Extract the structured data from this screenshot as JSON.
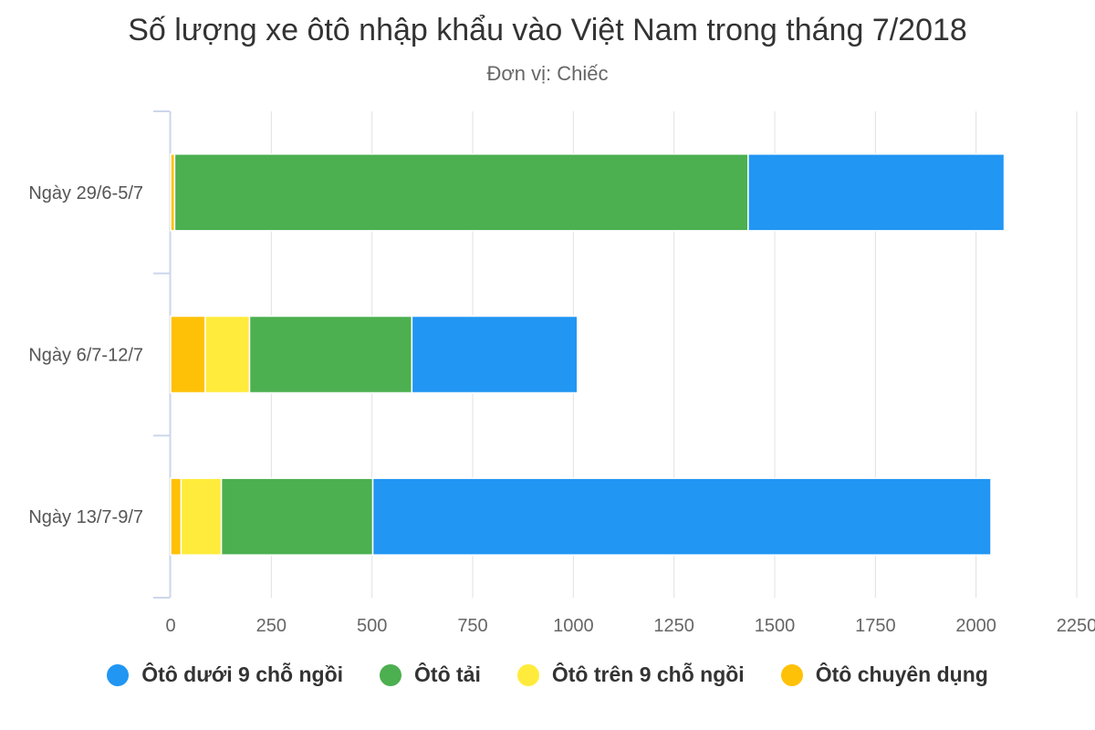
{
  "chart_data": {
    "type": "bar",
    "orientation": "horizontal",
    "stacked": true,
    "title": "Số lượng xe ôtô nhập khẩu vào Việt Nam trong tháng 7/2018",
    "subtitle": "Đơn vị: Chiếc",
    "categories": [
      "Ngày 29/6-5/7",
      "Ngày 6/7-12/7",
      "Ngày 13/7-9/7"
    ],
    "series": [
      {
        "name": "Ôtô dưới 9 chỗ ngồi",
        "color": "#2196F3",
        "values": [
          636,
          411,
          1535
        ]
      },
      {
        "name": "Ôtô tải",
        "color": "#4CAF50",
        "values": [
          1424,
          403,
          376
        ]
      },
      {
        "name": "Ôtô trên 9 chỗ ngồi",
        "color": "#FFEB3B",
        "values": [
          0,
          110,
          100
        ]
      },
      {
        "name": "Ôtô chuyên dụng",
        "color": "#FFC107",
        "values": [
          10,
          86,
          26
        ]
      }
    ],
    "stack_order_from_axis": [
      "Ôtô chuyên dụng",
      "Ôtô trên 9 chỗ ngồi",
      "Ôtô tải",
      "Ôtô dưới 9 chỗ ngồi"
    ],
    "xlim": [
      0,
      2250
    ],
    "x_ticks": [
      "0",
      "250",
      "500",
      "750",
      "1000",
      "1250",
      "1500",
      "1750",
      "2000",
      "2250"
    ],
    "x_tick_values": [
      0,
      250,
      500,
      750,
      1000,
      1250,
      1500,
      1750,
      2000,
      2250
    ],
    "grid": true,
    "legend_position": "bottom"
  }
}
